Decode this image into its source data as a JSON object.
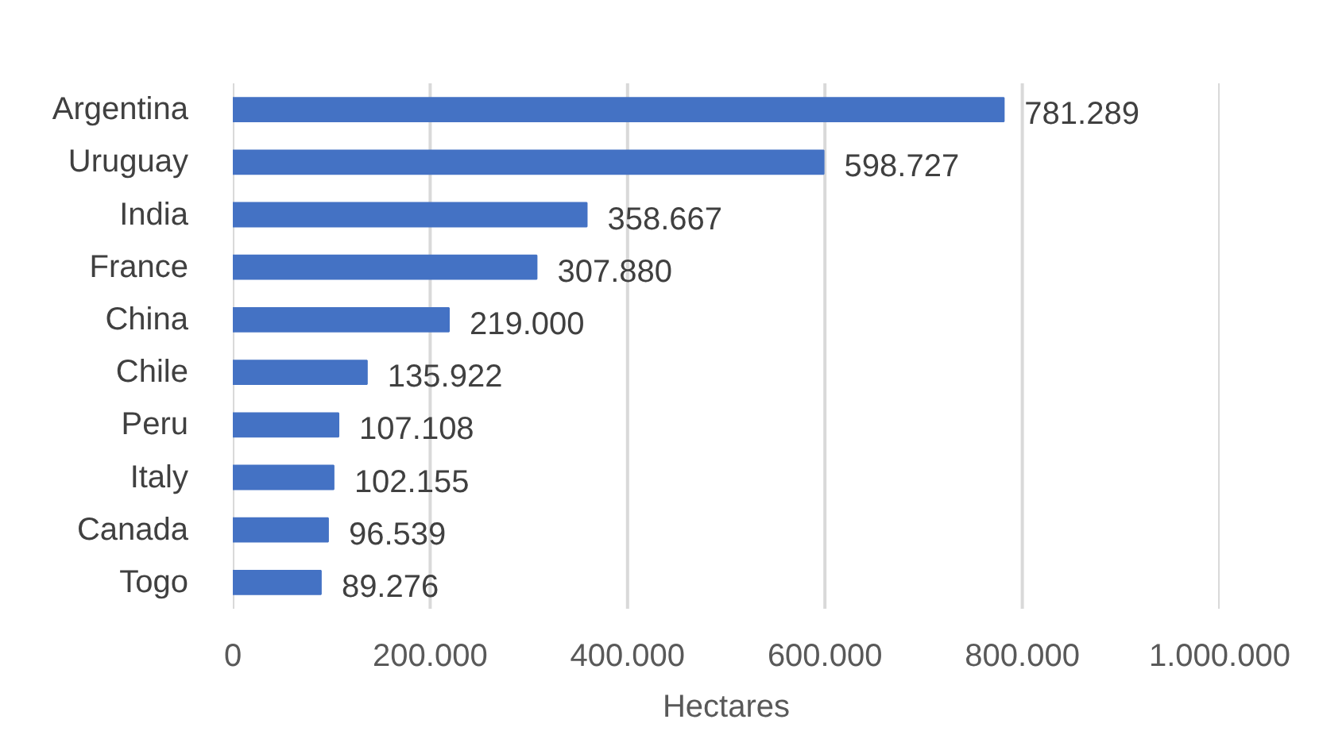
{
  "chart_data": {
    "type": "bar",
    "orientation": "horizontal",
    "categories": [
      "Argentina",
      "Uruguay",
      "India",
      "France",
      "China",
      "Chile",
      "Peru",
      "Italy",
      "Canada",
      "Togo"
    ],
    "values": [
      781289,
      598727,
      358667,
      307880,
      219000,
      135922,
      107108,
      102155,
      96539,
      89276
    ],
    "value_labels": [
      "781.289",
      "598.727",
      "358.667",
      "307.880",
      "219.000",
      "135.922",
      "107.108",
      "102.155",
      "96.539",
      "89.276"
    ],
    "color": "#4472c4",
    "xlabel": "Hectares",
    "xlim": [
      0,
      1000000
    ],
    "xticks": [
      0,
      {
        "value": 200000,
        "label": "200.000"
      },
      {
        "value": 400000,
        "label": "400.000"
      },
      {
        "value": 600000,
        "label": "600.000"
      },
      {
        "value": 800000,
        "label": "800.000"
      },
      {
        "value": 1000000,
        "label": "1.000.000"
      }
    ],
    "grid": "x"
  }
}
